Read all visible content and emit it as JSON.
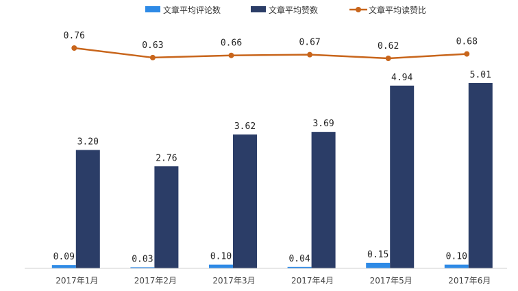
{
  "chart_data": {
    "type": "bar",
    "categories": [
      "2017年1月",
      "2017年2月",
      "2017年3月",
      "2017年4月",
      "2017年5月",
      "2017年6月"
    ],
    "series": [
      {
        "name": "文章平均评论数",
        "type": "bar",
        "color": "#2e8ae6",
        "values": [
          0.09,
          0.03,
          0.1,
          0.04,
          0.15,
          0.1
        ],
        "labels": [
          "0.09",
          "0.03",
          "0.10",
          "0.04",
          "0.15",
          "0.10"
        ]
      },
      {
        "name": "文章平均赞数",
        "type": "bar",
        "color": "#2b3d67",
        "values": [
          3.2,
          2.76,
          3.62,
          3.69,
          4.94,
          5.01
        ],
        "labels": [
          "3.20",
          "2.76",
          "3.62",
          "3.69",
          "4.94",
          "5.01"
        ]
      },
      {
        "name": "文章平均读赞比",
        "type": "line",
        "color": "#c8651b",
        "values": [
          0.76,
          0.63,
          0.66,
          0.67,
          0.62,
          0.68
        ],
        "labels": [
          "0.76",
          "0.63",
          "0.66",
          "0.67",
          "0.62",
          "0.68"
        ]
      }
    ],
    "legend_position": "top",
    "grid": false
  }
}
